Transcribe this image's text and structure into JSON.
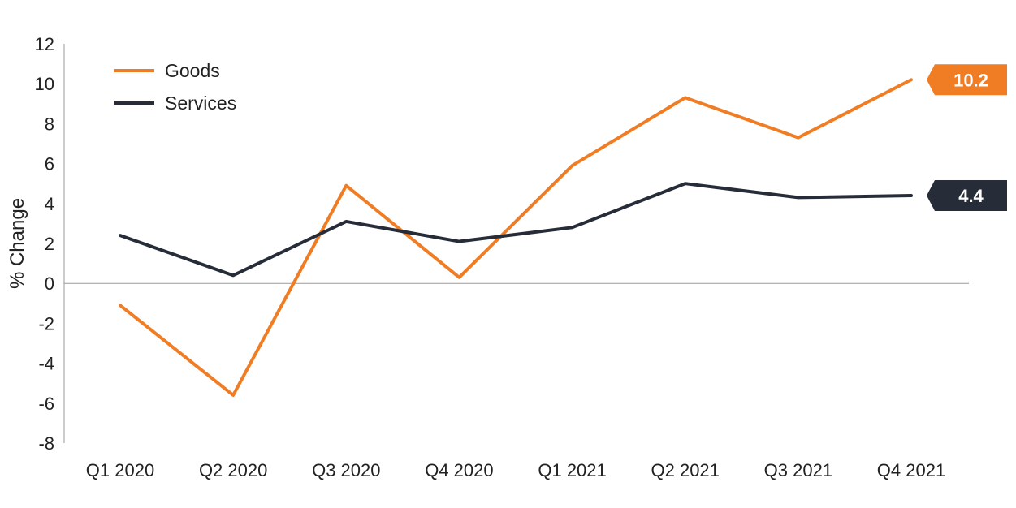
{
  "chart_data": {
    "type": "line",
    "title": "",
    "xlabel": "",
    "ylabel": "% Change",
    "ylim": [
      -8,
      12
    ],
    "yticks": [
      12,
      10,
      8,
      6,
      4,
      2,
      0,
      -2,
      -4,
      -6,
      -8
    ],
    "categories": [
      "Q1 2020",
      "Q2 2020",
      "Q3 2020",
      "Q4 2020",
      "Q1 2021",
      "Q2 2021",
      "Q3 2021",
      "Q4 2021"
    ],
    "grid": false,
    "legend_position": "top-left",
    "series": [
      {
        "name": "Goods",
        "color": "#F07D24",
        "values": [
          -1.1,
          -5.6,
          4.9,
          0.3,
          5.9,
          9.3,
          7.3,
          10.2
        ],
        "end_label": "10.2"
      },
      {
        "name": "Services",
        "color": "#262C38",
        "values": [
          2.4,
          0.4,
          3.1,
          2.1,
          2.8,
          5.0,
          4.3,
          4.4
        ],
        "end_label": "4.4"
      }
    ]
  }
}
